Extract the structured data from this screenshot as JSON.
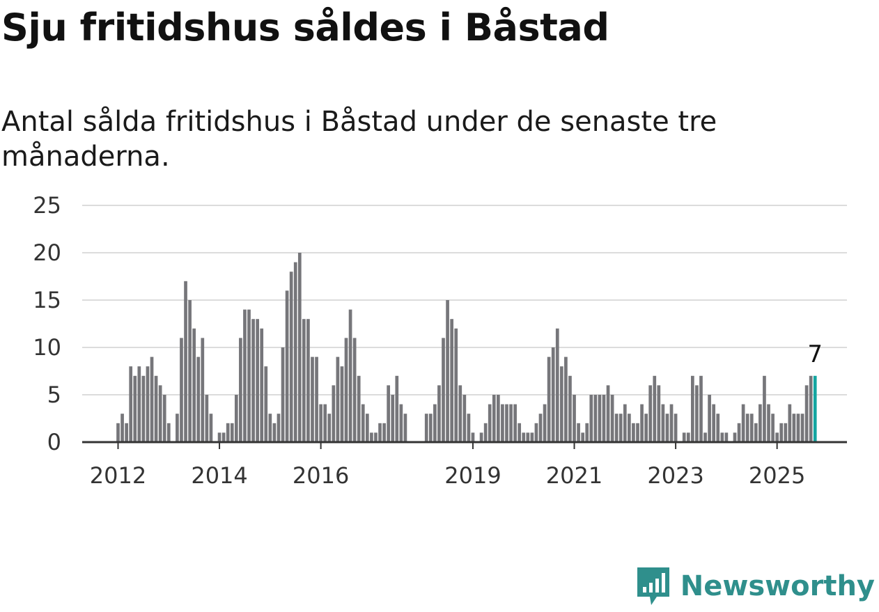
{
  "title": "Sju fritidshus såldes i Båstad",
  "subtitle": "Antal sålda fritidshus i Båstad under de senaste tre månaderna.",
  "brand": {
    "name": "Newsworthy",
    "color": "#2f8f8c",
    "icon": "newsworthy-logo-icon"
  },
  "colors": {
    "bar": "#76767a",
    "highlight": "#14a5a0",
    "grid": "#dcdcdc",
    "axis": "#333333"
  },
  "chart_data": {
    "type": "bar",
    "title": "Sju fritidshus såldes i Båstad",
    "subtitle": "Antal sålda fritidshus i Båstad under de senaste tre månaderna.",
    "xlabel": "",
    "ylabel": "",
    "ylim": [
      0,
      25
    ],
    "yticks": [
      0,
      5,
      10,
      15,
      20,
      25
    ],
    "xticks": [
      "2012",
      "2014",
      "2016",
      "2019",
      "2021",
      "2023",
      "2025"
    ],
    "grid": true,
    "legend": "none",
    "start": "2012-01",
    "frequency": "monthly",
    "values": [
      2,
      3,
      2,
      8,
      7,
      8,
      7,
      8,
      9,
      7,
      6,
      5,
      2,
      null,
      3,
      11,
      17,
      15,
      12,
      9,
      11,
      5,
      3,
      null,
      1,
      1,
      2,
      2,
      5,
      11,
      14,
      14,
      13,
      13,
      12,
      8,
      3,
      2,
      3,
      10,
      16,
      18,
      19,
      20,
      13,
      13,
      9,
      9,
      4,
      4,
      3,
      6,
      9,
      8,
      11,
      14,
      11,
      7,
      4,
      3,
      1,
      1,
      2,
      2,
      6,
      5,
      7,
      4,
      3,
      null,
      null,
      null,
      null,
      3,
      3,
      4,
      6,
      11,
      15,
      13,
      12,
      6,
      5,
      3,
      1,
      null,
      1,
      2,
      4,
      5,
      5,
      4,
      4,
      4,
      4,
      2,
      1,
      1,
      1,
      2,
      3,
      4,
      9,
      10,
      12,
      8,
      9,
      7,
      5,
      2,
      1,
      2,
      5,
      5,
      5,
      5,
      6,
      5,
      3,
      3,
      4,
      3,
      2,
      2,
      4,
      3,
      6,
      7,
      6,
      4,
      3,
      4,
      3,
      null,
      1,
      1,
      7,
      6,
      7,
      1,
      5,
      4,
      3,
      1,
      1,
      null,
      1,
      2,
      4,
      3,
      3,
      2,
      4,
      7,
      4,
      3,
      1,
      2,
      2,
      4,
      3,
      3,
      3,
      6,
      7,
      7
    ],
    "highlight_last": true,
    "last_value_label": "7"
  }
}
